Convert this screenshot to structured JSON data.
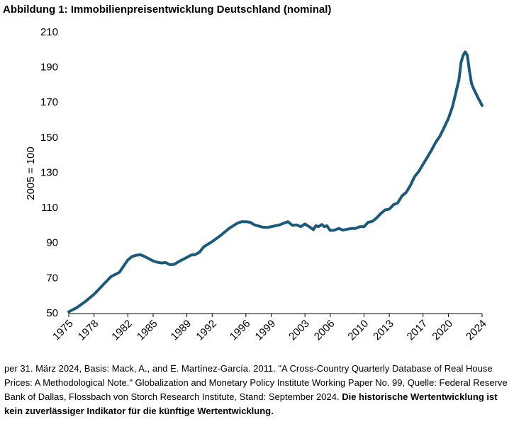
{
  "chart_data": {
    "type": "line",
    "title": "Abbildung 1: Immobilienpreisentwicklung Deutschland (nominal)",
    "y_label": "2005 = 100",
    "color": "#1b5a7c",
    "x": [
      1975,
      1976,
      1977,
      1978,
      1979,
      1980,
      1981,
      1981.5,
      1982,
      1982.5,
      1983,
      1983.5,
      1984,
      1985,
      1985.5,
      1986,
      1986.5,
      1987,
      1987.5,
      1988,
      1989,
      1989.5,
      1990,
      1990.5,
      1991,
      1992,
      1993,
      1994,
      1995,
      1995.5,
      1996,
      1996.5,
      1997,
      1998,
      1998.5,
      1999,
      2000,
      2000.5,
      2001,
      2001.5,
      2002,
      2002.5,
      2003,
      2003.5,
      2004,
      2004.3,
      2004.6,
      2005,
      2005.3,
      2005.6,
      2006,
      2006.5,
      2007,
      2007.5,
      2008,
      2008.5,
      2009,
      2009.5,
      2010,
      2010.5,
      2011,
      2011.5,
      2012,
      2012.5,
      2013,
      2013.5,
      2014,
      2014.5,
      2015,
      2015.5,
      2016,
      2016.5,
      2017,
      2017.5,
      2018,
      2018.5,
      2019,
      2019.5,
      2020,
      2020.5,
      2021,
      2021.25,
      2021.5,
      2021.75,
      2022,
      2022.25,
      2022.5,
      2022.75,
      2023,
      2023.5,
      2024
    ],
    "values": [
      51,
      53.5,
      57,
      61,
      66,
      71,
      73.5,
      77,
      80.5,
      82.5,
      83.2,
      83.5,
      82.5,
      80,
      79.2,
      78.8,
      79,
      77.8,
      78,
      79.5,
      82,
      83.3,
      83.6,
      85,
      88,
      91,
      94.5,
      98.5,
      101.5,
      102.3,
      102.3,
      102,
      100.5,
      99.2,
      99,
      99.5,
      100.5,
      101.5,
      102.3,
      100.2,
      100.5,
      99.5,
      101,
      99.5,
      97.8,
      100,
      99.5,
      100.7,
      99.5,
      100,
      97.3,
      97.5,
      98.5,
      97.5,
      98,
      98.5,
      98.5,
      99.5,
      99.5,
      102,
      102.5,
      104.5,
      107,
      109,
      109.5,
      112,
      113,
      117,
      119,
      123,
      128,
      131,
      135,
      139,
      143,
      147.5,
      151,
      156,
      161,
      168,
      178,
      183,
      193,
      197,
      199,
      197,
      188,
      181,
      178,
      173,
      168.5
    ],
    "xlim": [
      1975,
      2024
    ],
    "xticks": [
      1975,
      1978,
      1982,
      1985,
      1989,
      1992,
      1996,
      1999,
      2003,
      2006,
      2010,
      2013,
      2017,
      2020,
      2024
    ],
    "ylim": [
      50,
      210
    ],
    "yticks": [
      50,
      70,
      90,
      110,
      130,
      150,
      170,
      190,
      210
    ],
    "footnote": "per 31. März 2024, Basis: Mack, A., and E. Martínez-García. 2011. \"A Cross-Country Quarterly Database of Real House Prices: A Methodological Note.\" Globalization and Monetary Policy Institute Working Paper No. 99, Quelle: Federal Reserve Bank of Dallas, Flossbach von Storch Research Institute, Stand: September 2024.",
    "footnote_bold": "Die historische Wertentwicklung ist kein zuverlässiger Indikator für die künftige Wertentwicklung."
  }
}
